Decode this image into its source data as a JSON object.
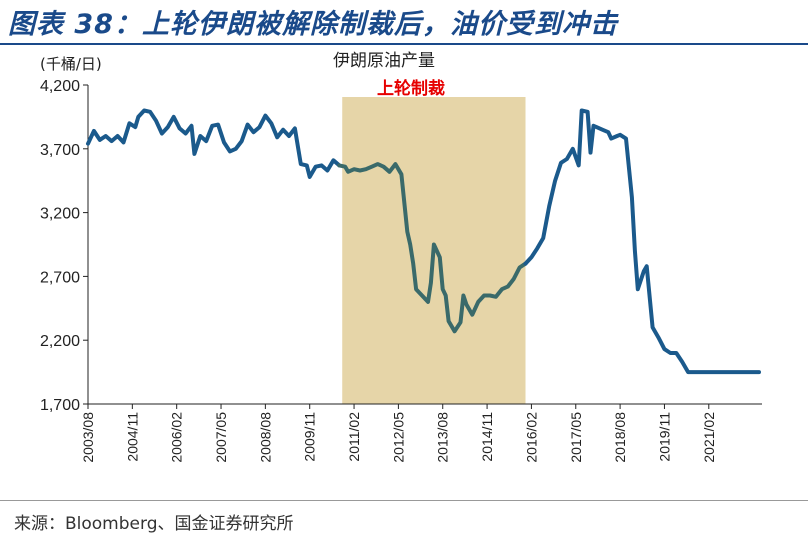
{
  "header": {
    "figure_title": "图表 38：上轮伊朗被解除制裁后，油价受到冲击"
  },
  "footer": {
    "source": "来源：Bloomberg、国金证券研究所"
  },
  "colors": {
    "line": "#1b5a8c",
    "line_in_band": "#3a6a6a",
    "band": "#e6d5a8",
    "title": "#1a4a8a",
    "annotation": "#e60000"
  },
  "chart_data": {
    "type": "line",
    "ylabel": "(千桶/日)",
    "ylim": [
      1700,
      4200
    ],
    "yticks": [
      1700,
      2200,
      2700,
      3200,
      3700,
      4200
    ],
    "ytick_labels": [
      "1,700",
      "2,200",
      "2,700",
      "3,200",
      "3,700",
      "4,200"
    ],
    "xlim": [
      "2003-08",
      "2022-08"
    ],
    "xticks": [
      "2003/08",
      "2004/11",
      "2006/02",
      "2007/05",
      "2008/08",
      "2009/11",
      "2011/02",
      "2012/05",
      "2013/08",
      "2014/11",
      "2016/02",
      "2017/05",
      "2018/08",
      "2019/11",
      "2021/02"
    ],
    "grid": false,
    "shaded_region": {
      "start": "2010-10",
      "end": "2015-12",
      "label": "上轮制裁"
    },
    "series": [
      {
        "name": "伊朗原油产量",
        "points": [
          [
            "2003-08",
            3740
          ],
          [
            "2003-10",
            3840
          ],
          [
            "2003-12",
            3770
          ],
          [
            "2004-02",
            3800
          ],
          [
            "2004-04",
            3760
          ],
          [
            "2004-06",
            3800
          ],
          [
            "2004-08",
            3750
          ],
          [
            "2004-10",
            3900
          ],
          [
            "2004-12",
            3870
          ],
          [
            "2005-01",
            3950
          ],
          [
            "2005-03",
            4000
          ],
          [
            "2005-05",
            3990
          ],
          [
            "2005-07",
            3920
          ],
          [
            "2005-09",
            3820
          ],
          [
            "2005-11",
            3870
          ],
          [
            "2006-01",
            3950
          ],
          [
            "2006-03",
            3860
          ],
          [
            "2006-05",
            3820
          ],
          [
            "2006-07",
            3880
          ],
          [
            "2006-08",
            3660
          ],
          [
            "2006-10",
            3800
          ],
          [
            "2006-12",
            3760
          ],
          [
            "2007-02",
            3880
          ],
          [
            "2007-04",
            3890
          ],
          [
            "2007-06",
            3750
          ],
          [
            "2007-08",
            3680
          ],
          [
            "2007-10",
            3700
          ],
          [
            "2007-12",
            3760
          ],
          [
            "2008-02",
            3890
          ],
          [
            "2008-04",
            3830
          ],
          [
            "2008-06",
            3870
          ],
          [
            "2008-08",
            3960
          ],
          [
            "2008-10",
            3900
          ],
          [
            "2008-12",
            3790
          ],
          [
            "2009-02",
            3850
          ],
          [
            "2009-04",
            3800
          ],
          [
            "2009-06",
            3860
          ],
          [
            "2009-08",
            3580
          ],
          [
            "2009-10",
            3570
          ],
          [
            "2009-11",
            3480
          ],
          [
            "2010-01",
            3560
          ],
          [
            "2010-03",
            3570
          ],
          [
            "2010-05",
            3530
          ],
          [
            "2010-07",
            3610
          ],
          [
            "2010-09",
            3570
          ],
          [
            "2010-11",
            3560
          ],
          [
            "2010-12",
            3520
          ],
          [
            "2011-02",
            3540
          ],
          [
            "2011-04",
            3530
          ],
          [
            "2011-06",
            3540
          ],
          [
            "2011-08",
            3560
          ],
          [
            "2011-10",
            3580
          ],
          [
            "2011-12",
            3560
          ],
          [
            "2012-02",
            3520
          ],
          [
            "2012-04",
            3580
          ],
          [
            "2012-06",
            3500
          ],
          [
            "2012-08",
            3050
          ],
          [
            "2012-09",
            2950
          ],
          [
            "2012-10",
            2800
          ],
          [
            "2012-11",
            2600
          ],
          [
            "2013-01",
            2550
          ],
          [
            "2013-03",
            2500
          ],
          [
            "2013-04",
            2650
          ],
          [
            "2013-05",
            2950
          ],
          [
            "2013-07",
            2850
          ],
          [
            "2013-08",
            2600
          ],
          [
            "2013-09",
            2550
          ],
          [
            "2013-10",
            2350
          ],
          [
            "2013-12",
            2270
          ],
          [
            "2014-02",
            2340
          ],
          [
            "2014-03",
            2550
          ],
          [
            "2014-04",
            2480
          ],
          [
            "2014-06",
            2400
          ],
          [
            "2014-08",
            2500
          ],
          [
            "2014-10",
            2550
          ],
          [
            "2014-12",
            2550
          ],
          [
            "2015-02",
            2540
          ],
          [
            "2015-04",
            2600
          ],
          [
            "2015-06",
            2620
          ],
          [
            "2015-08",
            2680
          ],
          [
            "2015-10",
            2770
          ],
          [
            "2015-12",
            2800
          ],
          [
            "2016-02",
            2850
          ],
          [
            "2016-04",
            2920
          ],
          [
            "2016-06",
            3000
          ],
          [
            "2016-08",
            3250
          ],
          [
            "2016-10",
            3450
          ],
          [
            "2016-12",
            3590
          ],
          [
            "2017-02",
            3620
          ],
          [
            "2017-04",
            3700
          ],
          [
            "2017-06",
            3570
          ],
          [
            "2017-07",
            4000
          ],
          [
            "2017-09",
            3990
          ],
          [
            "2017-10",
            3670
          ],
          [
            "2017-11",
            3880
          ],
          [
            "2017-12",
            3870
          ],
          [
            "2018-02",
            3850
          ],
          [
            "2018-04",
            3830
          ],
          [
            "2018-05",
            3780
          ],
          [
            "2018-07",
            3800
          ],
          [
            "2018-08",
            3810
          ],
          [
            "2018-10",
            3780
          ],
          [
            "2018-12",
            3320
          ],
          [
            "2019-01",
            2900
          ],
          [
            "2019-02",
            2600
          ],
          [
            "2019-04",
            2740
          ],
          [
            "2019-05",
            2780
          ],
          [
            "2019-07",
            2300
          ],
          [
            "2019-09",
            2220
          ],
          [
            "2019-11",
            2130
          ],
          [
            "2020-01",
            2100
          ],
          [
            "2020-03",
            2100
          ],
          [
            "2020-05",
            2030
          ],
          [
            "2020-07",
            1950
          ],
          [
            "2021-02",
            1950
          ],
          [
            "2022-07",
            1950
          ]
        ]
      }
    ]
  }
}
